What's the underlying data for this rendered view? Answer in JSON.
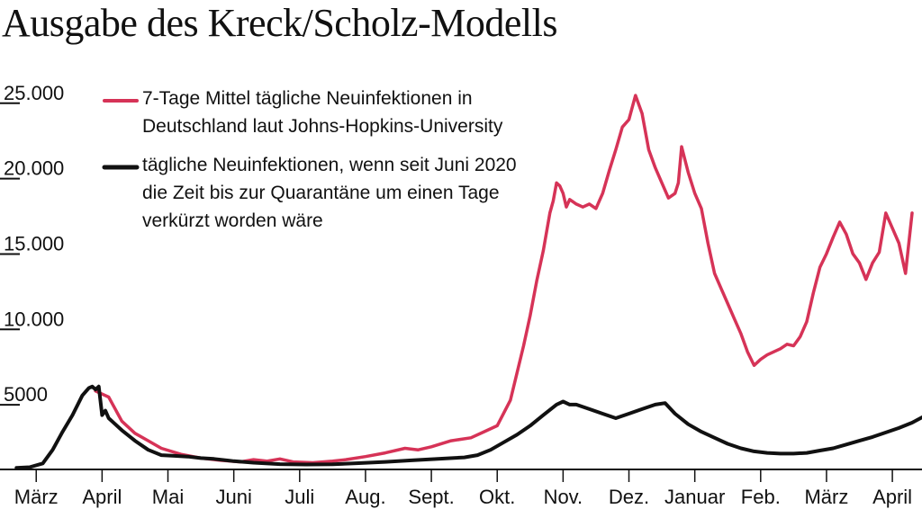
{
  "title": "Ausgabe des Kreck/Scholz-Modells",
  "chart_data": {
    "type": "line",
    "title": "Ausgabe des Kreck/Scholz-Modells",
    "xlabel": "",
    "ylabel": "",
    "ylim": [
      0,
      26000
    ],
    "yticks": [
      {
        "value": 25000,
        "label": "25.000"
      },
      {
        "value": 20000,
        "label": "20.000"
      },
      {
        "value": 15000,
        "label": "15.000"
      },
      {
        "value": 10000,
        "label": "10.000"
      },
      {
        "value": 5000,
        "label": "5000"
      }
    ],
    "xticks": [
      {
        "value": 0.3,
        "label": "März"
      },
      {
        "value": 1.3,
        "label": "April"
      },
      {
        "value": 2.3,
        "label": "Mai"
      },
      {
        "value": 3.3,
        "label": "Juni"
      },
      {
        "value": 4.3,
        "label": "Juli"
      },
      {
        "value": 5.3,
        "label": "Aug."
      },
      {
        "value": 6.3,
        "label": "Sept."
      },
      {
        "value": 7.3,
        "label": "Okt."
      },
      {
        "value": 8.3,
        "label": "Nov."
      },
      {
        "value": 9.3,
        "label": "Dez."
      },
      {
        "value": 10.3,
        "label": "Januar"
      },
      {
        "value": 11.3,
        "label": "Feb."
      },
      {
        "value": 12.3,
        "label": "März"
      },
      {
        "value": 13.3,
        "label": "April"
      }
    ],
    "xlim": [
      -0.25,
      13.75
    ],
    "grid": false,
    "legend_position": "top-left",
    "series": [
      {
        "name": "7-Tage Mittel tägliche Neuinfektionen in Deutschland laut Johns-Hopkins-University",
        "legend_lines": [
          "7-Tage Mittel tägliche Neuinfektionen in",
          "Deutschland laut Johns-Hopkins-University"
        ],
        "color": "#d63357",
        "x": [
          1.2,
          1.4,
          1.6,
          1.8,
          2.0,
          2.2,
          2.5,
          2.8,
          3.1,
          3.4,
          3.6,
          3.8,
          4.0,
          4.2,
          4.5,
          4.8,
          5.0,
          5.3,
          5.6,
          5.9,
          6.1,
          6.3,
          6.6,
          6.9,
          7.1,
          7.3,
          7.5,
          7.6,
          7.7,
          7.8,
          7.9,
          8.0,
          8.1,
          8.15,
          8.2,
          8.25,
          8.3,
          8.35,
          8.4,
          8.5,
          8.6,
          8.7,
          8.8,
          8.9,
          9.0,
          9.1,
          9.2,
          9.3,
          9.4,
          9.5,
          9.6,
          9.7,
          9.8,
          9.9,
          10.0,
          10.05,
          10.1,
          10.2,
          10.3,
          10.4,
          10.5,
          10.6,
          10.7,
          10.8,
          10.9,
          11.0,
          11.1,
          11.2,
          11.3,
          11.4,
          11.5,
          11.6,
          11.7,
          11.8,
          11.9,
          12.0,
          12.1,
          12.2,
          12.3,
          12.4,
          12.5,
          12.6,
          12.7,
          12.8,
          12.9,
          13.0,
          13.1,
          13.2,
          13.3,
          13.4,
          13.5,
          13.6
        ],
        "y": [
          5200,
          4800,
          3200,
          2400,
          1900,
          1400,
          1000,
          750,
          600,
          500,
          650,
          550,
          700,
          500,
          450,
          550,
          650,
          850,
          1100,
          1400,
          1300,
          1500,
          1900,
          2100,
          2500,
          2900,
          4600,
          6400,
          8200,
          10200,
          12500,
          14500,
          17000,
          17800,
          19000,
          18800,
          18300,
          17400,
          17900,
          17600,
          17400,
          17600,
          17300,
          18300,
          19800,
          21200,
          22700,
          23200,
          24800,
          23600,
          21200,
          20000,
          19000,
          18000,
          18300,
          19000,
          21400,
          19700,
          18300,
          17300,
          15000,
          13000,
          12000,
          11000,
          10000,
          9000,
          7800,
          6900,
          7300,
          7600,
          7800,
          8000,
          8300,
          8200,
          8800,
          9800,
          11700,
          13400,
          14300,
          15400,
          16400,
          15600,
          14300,
          13700,
          12600,
          13700,
          14400,
          17000,
          16000,
          15000,
          13000,
          17000
        ]
      },
      {
        "name": "tägliche Neuinfektionen, wenn seit Juni 2020 die Zeit bis zur Quarantäne um einen Tage verkürzt worden wäre",
        "legend_lines": [
          "tägliche Neuinfektionen, wenn seit Juni 2020",
          "die Zeit bis zur Quarantäne um einen Tage",
          "verkürzt worden wäre"
        ],
        "color": "#111111",
        "x": [
          0.0,
          0.2,
          0.4,
          0.55,
          0.7,
          0.85,
          1.0,
          1.1,
          1.15,
          1.2,
          1.25,
          1.3,
          1.35,
          1.4,
          1.6,
          1.8,
          2.0,
          2.2,
          2.4,
          2.6,
          2.8,
          3.0,
          3.3,
          3.6,
          4.0,
          4.4,
          4.8,
          5.2,
          5.6,
          6.0,
          6.4,
          6.8,
          7.0,
          7.2,
          7.4,
          7.6,
          7.8,
          8.0,
          8.2,
          8.3,
          8.4,
          8.5,
          8.7,
          8.9,
          9.1,
          9.3,
          9.5,
          9.7,
          9.85,
          10.0,
          10.2,
          10.4,
          10.6,
          10.8,
          11.0,
          11.2,
          11.4,
          11.6,
          11.8,
          12.0,
          12.2,
          12.4,
          12.6,
          12.8,
          13.0,
          13.2,
          13.4,
          13.6,
          13.75
        ],
        "y": [
          100,
          150,
          400,
          1300,
          2500,
          3600,
          4900,
          5400,
          5500,
          5300,
          5500,
          3600,
          3900,
          3400,
          2600,
          1900,
          1300,
          950,
          900,
          850,
          750,
          700,
          550,
          450,
          350,
          330,
          340,
          420,
          500,
          600,
          700,
          800,
          950,
          1300,
          1800,
          2300,
          2900,
          3600,
          4300,
          4500,
          4300,
          4300,
          4000,
          3700,
          3400,
          3700,
          4000,
          4300,
          4400,
          3700,
          3000,
          2500,
          2100,
          1700,
          1400,
          1200,
          1100,
          1050,
          1050,
          1100,
          1250,
          1400,
          1650,
          1900,
          2150,
          2450,
          2750,
          3100,
          3450
        ]
      }
    ]
  }
}
